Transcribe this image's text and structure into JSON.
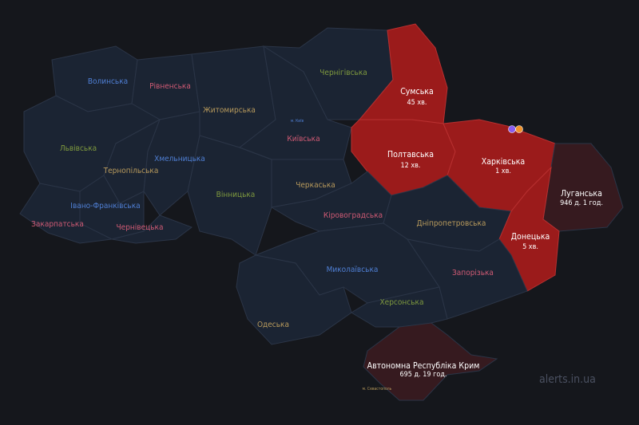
{
  "colors": {
    "background": "#15171c",
    "region": "#1b2433",
    "border": "#2b3547",
    "alert": "#9b1b1b",
    "long_alert": "#361a1f"
  },
  "regions": [
    {
      "id": "volynska",
      "name": "Волинська",
      "color": "#4f7fd4",
      "status": "none"
    },
    {
      "id": "rivnenska",
      "name": "Рівненська",
      "color": "#cf5a74",
      "status": "none"
    },
    {
      "id": "zhytomyrska",
      "name": "Житомирська",
      "color": "#b89a5c",
      "status": "none"
    },
    {
      "id": "chernihivska",
      "name": "Чернігівська",
      "color": "#7f9a3e",
      "status": "none"
    },
    {
      "id": "sumska",
      "name": "Сумська",
      "duration": "45 хв.",
      "status": "alert"
    },
    {
      "id": "lvivska",
      "name": "Львівська",
      "color": "#7f9a3e",
      "status": "none"
    },
    {
      "id": "ternopilska",
      "name": "Тернопільська",
      "color": "#b89a5c",
      "status": "none"
    },
    {
      "id": "khmelnytska",
      "name": "Хмельницька",
      "color": "#4f7fd4",
      "status": "none"
    },
    {
      "id": "kyivska",
      "name": "Київська",
      "color": "#cf5a74",
      "status": "none"
    },
    {
      "id": "poltavska",
      "name": "Полтавська",
      "duration": "12 хв.",
      "status": "alert"
    },
    {
      "id": "kharkivska",
      "name": "Харківська",
      "duration": "1 хв.",
      "status": "alert"
    },
    {
      "id": "luhanska",
      "name": "Луганська",
      "duration": "946 д. 1 год.",
      "status": "long"
    },
    {
      "id": "vinnytska",
      "name": "Вінницька",
      "color": "#7f9a3e",
      "status": "none"
    },
    {
      "id": "cherkaska",
      "name": "Черкаська",
      "color": "#b89a5c",
      "status": "none"
    },
    {
      "id": "ivano-frankivska",
      "name": "Івано-Франківська",
      "color": "#4f7fd4",
      "status": "none"
    },
    {
      "id": "zakarpatska",
      "name": "Закарпатська",
      "color": "#cf5a74",
      "status": "none"
    },
    {
      "id": "chernivetska",
      "name": "Чернівецька",
      "color": "#cf5a74",
      "status": "none"
    },
    {
      "id": "kirovohradska",
      "name": "Кіровоградська",
      "color": "#cf5a74",
      "status": "none"
    },
    {
      "id": "dnipropetrovska",
      "name": "Дніпропетровська",
      "color": "#b89a5c",
      "status": "none"
    },
    {
      "id": "donetska",
      "name": "Донецька",
      "duration": "5 хв.",
      "status": "alert"
    },
    {
      "id": "mykolaivska",
      "name": "Миколаївська",
      "color": "#4f7fd4",
      "status": "none"
    },
    {
      "id": "zaporizka",
      "name": "Запорізька",
      "color": "#cf5a74",
      "status": "none"
    },
    {
      "id": "khersonska",
      "name": "Херсонська",
      "color": "#7f9a3e",
      "status": "none"
    },
    {
      "id": "odeska",
      "name": "Одеська",
      "color": "#b89a5c",
      "status": "none"
    },
    {
      "id": "crimea",
      "name": "Автономна Республіка Крим",
      "duration": "695 д. 19 год.",
      "status": "long"
    }
  ],
  "cities": [
    {
      "name": "м. Київ",
      "color": "#4f7fd4"
    },
    {
      "name": "м. Севастополь",
      "color": "#b89a5c"
    }
  ],
  "markers": [
    {
      "icon": "drone-icon",
      "color": "#8a5cf0"
    },
    {
      "icon": "explosion-icon",
      "color": "#f0922c"
    }
  ],
  "watermark": "alerts.in.ua"
}
